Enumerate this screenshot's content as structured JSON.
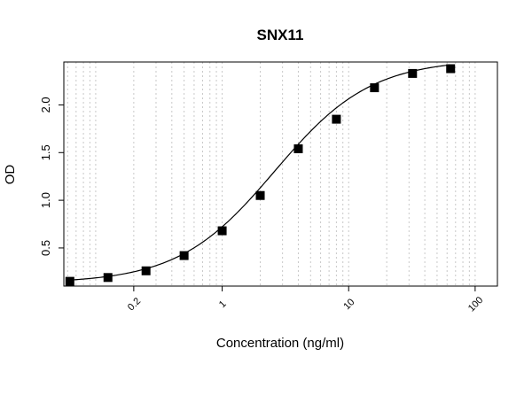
{
  "chart_data": {
    "type": "scatter",
    "title": "SNX11",
    "xlabel": "Concentration (ng/ml)",
    "ylabel": "OD",
    "x_scale": "log",
    "xlim": [
      0.056,
      150
    ],
    "ylim": [
      0.1,
      2.45
    ],
    "grid": "vertical-minor-log",
    "x_ticks": [
      {
        "value": 0.2,
        "label": "0.2"
      },
      {
        "value": 1,
        "label": "1"
      },
      {
        "value": 10,
        "label": "10"
      },
      {
        "value": 100,
        "label": "100"
      }
    ],
    "y_ticks": [
      {
        "value": 0.5,
        "label": "0.5"
      },
      {
        "value": 1.0,
        "label": "1.0"
      },
      {
        "value": 1.5,
        "label": "1.5"
      },
      {
        "value": 2.0,
        "label": "2.0"
      }
    ],
    "points": [
      {
        "x": 0.0625,
        "y": 0.15
      },
      {
        "x": 0.125,
        "y": 0.19
      },
      {
        "x": 0.25,
        "y": 0.26
      },
      {
        "x": 0.5,
        "y": 0.42
      },
      {
        "x": 1,
        "y": 0.68
      },
      {
        "x": 2,
        "y": 1.05
      },
      {
        "x": 4,
        "y": 1.54
      },
      {
        "x": 8,
        "y": 1.85
      },
      {
        "x": 16,
        "y": 2.18
      },
      {
        "x": 32,
        "y": 2.33
      },
      {
        "x": 64,
        "y": 2.38
      }
    ],
    "fit_curve": {
      "type": "4PL",
      "bottom": 0.13,
      "top": 2.48,
      "ec50": 2.6,
      "hill": 1.14
    },
    "marker_color": "#000000",
    "line_color": "#000000",
    "grid_color": "#c8c8c8"
  }
}
